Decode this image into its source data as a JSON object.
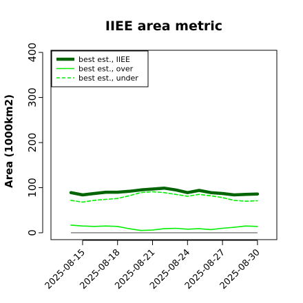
{
  "chart_data": {
    "type": "line",
    "title": "IIEE area metric",
    "xlabel": "",
    "ylabel": "Area (1000km2)",
    "ylim": [
      0,
      420
    ],
    "yticks": [
      0,
      100,
      200,
      300,
      400
    ],
    "x": [
      "2025-08-14",
      "2025-08-15",
      "2025-08-16",
      "2025-08-17",
      "2025-08-18",
      "2025-08-19",
      "2025-08-20",
      "2025-08-21",
      "2025-08-22",
      "2025-08-23",
      "2025-08-24",
      "2025-08-25",
      "2025-08-26",
      "2025-08-27",
      "2025-08-28",
      "2025-08-29",
      "2025-08-30"
    ],
    "xticks": [
      "2025-08-15",
      "2025-08-18",
      "2025-08-21",
      "2025-08-24",
      "2025-08-27",
      "2025-08-30"
    ],
    "grid": false,
    "legend_position": "top-left",
    "series": [
      {
        "name": "best est., IIEE",
        "color": "#006400",
        "style": "solid",
        "width": "thick",
        "values": [
          89,
          84,
          87,
          90,
          90,
          92,
          95,
          97,
          99,
          95,
          89,
          94,
          89,
          87,
          84,
          85,
          86
        ]
      },
      {
        "name": "best est., over",
        "color": "#00ee00",
        "style": "solid",
        "width": "thin",
        "values": [
          17,
          15,
          14,
          15,
          14,
          9,
          5,
          6,
          9,
          10,
          8,
          9,
          7,
          10,
          12,
          15,
          14
        ]
      },
      {
        "name": "best est., under",
        "color": "#00ee00",
        "style": "dashed",
        "width": "thin",
        "values": [
          72,
          68,
          72,
          74,
          76,
          82,
          89,
          91,
          89,
          85,
          81,
          85,
          82,
          78,
          72,
          70,
          71
        ]
      }
    ],
    "reference_line": {
      "value": 0,
      "color": "#808080"
    }
  }
}
